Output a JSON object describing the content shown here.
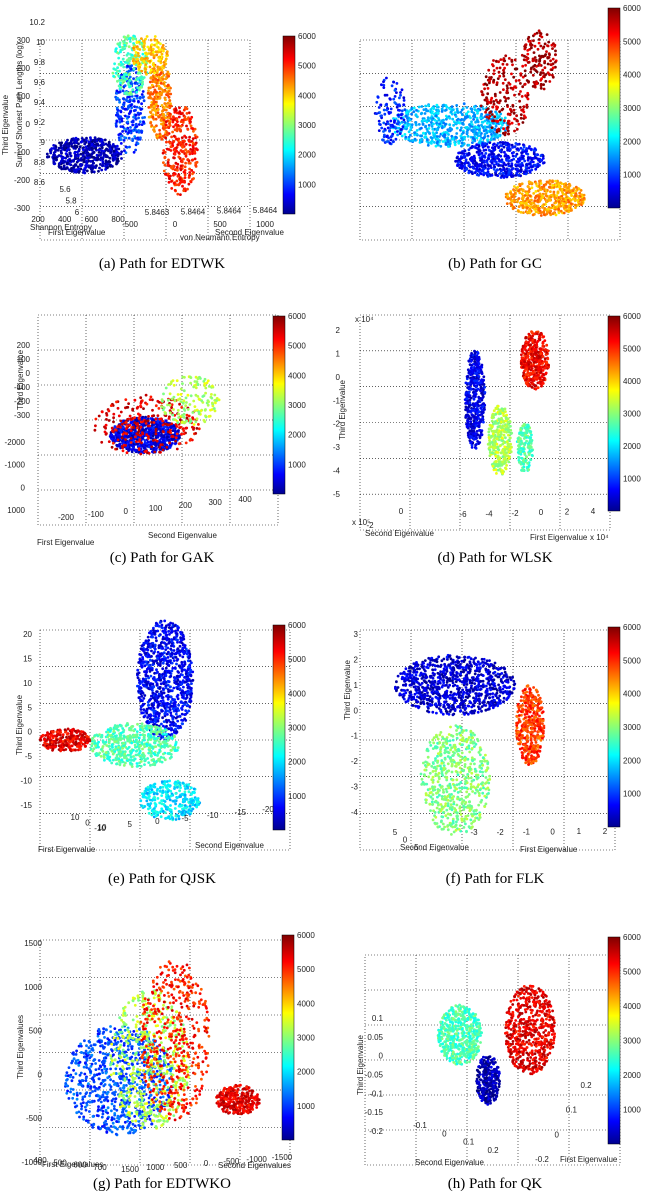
{
  "chart_data": [
    {
      "type": "scatter",
      "caption": "(a)  Path for EDTWK",
      "xlabel": "First Eigenvalue",
      "ylabel": "Second Eigenvalue",
      "zlabel": "Third Eigenvalue",
      "z_ticks": [
        "300",
        "200",
        "100",
        "0",
        "-100",
        "-200",
        "-300"
      ],
      "x_ticks": [
        "200",
        "400",
        "600",
        "800"
      ],
      "y_ticks": [
        "-500",
        "0",
        "500",
        "1000"
      ],
      "colorbar": {
        "min": 0,
        "max": 6000,
        "ticks": [
          "1000",
          "2000",
          "3000",
          "4000",
          "5000",
          "6000"
        ]
      }
    },
    {
      "type": "scatter",
      "caption": "(b)  Path for GC",
      "xlabel": "Shannon Entropy",
      "ylabel": "von Neumann Entropy",
      "zlabel": "Sum of Shortest Path Lengths (log)",
      "z_ticks": [
        "10.2",
        "10",
        "9.8",
        "9.6",
        "9.4",
        "9.2",
        "9",
        "8.8",
        "8.6"
      ],
      "x_ticks": [
        "5.6",
        "5.8",
        "6"
      ],
      "y_ticks": [
        "5.8463",
        "5.8464",
        "5.8464",
        "5.8464"
      ],
      "colorbar": {
        "min": 0,
        "max": 6000,
        "ticks": [
          "1000",
          "2000",
          "3000",
          "4000",
          "5000",
          "6000"
        ]
      }
    },
    {
      "type": "scatter",
      "caption": "(c)  Path for GAK",
      "xlabel": "First Eigenvalue",
      "ylabel": "Second Eigenvalue",
      "zlabel": "Third Eigenvalue",
      "z_ticks": [
        "200",
        "100",
        "0",
        "-100",
        "-200",
        "-300"
      ],
      "x_ticks": [
        "-2000",
        "-1000",
        "0",
        "1000"
      ],
      "y_ticks": [
        "-200",
        "-100",
        "0",
        "100",
        "200",
        "300",
        "400"
      ],
      "colorbar": {
        "min": 0,
        "max": 6000,
        "ticks": [
          "1000",
          "2000",
          "3000",
          "4000",
          "5000",
          "6000"
        ]
      }
    },
    {
      "type": "scatter",
      "caption": "(d)  Path for WLSK",
      "xlabel": "First Eigenvalue",
      "ylabel": "Second Eigenvalue",
      "zlabel": "Third Eigenvalue",
      "z_exp": "x 10⁴",
      "x_exp": "x 10⁴",
      "y_exp": "x 10⁵",
      "z_ticks": [
        "2",
        "1",
        "0",
        "-1",
        "-2",
        "-3",
        "-4",
        "-5"
      ],
      "x_ticks": [
        "-6",
        "-4",
        "-2",
        "0",
        "2",
        "4"
      ],
      "y_ticks": [
        "-2",
        "0"
      ],
      "colorbar": {
        "min": 0,
        "max": 6000,
        "ticks": [
          "1000",
          "2000",
          "3000",
          "4000",
          "5000",
          "6000"
        ]
      }
    },
    {
      "type": "scatter",
      "caption": "(e)  Path for QJSK",
      "xlabel": "First Eigenvalue",
      "ylabel": "Second Eigenvalue",
      "zlabel": "Third Eigenvalue",
      "z_ticks": [
        "20",
        "15",
        "10",
        "5",
        "0",
        "-5",
        "-10",
        "-15"
      ],
      "x_ticks": [
        "10",
        "0",
        "-10"
      ],
      "y_ticks": [
        "10",
        "5",
        "0",
        "-5",
        "-10",
        "-15",
        "-20"
      ],
      "colorbar": {
        "min": 0,
        "max": 6000,
        "ticks": [
          "1000",
          "2000",
          "3000",
          "4000",
          "5000",
          "6000"
        ]
      }
    },
    {
      "type": "scatter",
      "caption": "(f)  Path for FLK",
      "xlabel": "First Eigenvalue",
      "ylabel": "Second Eigenvalue",
      "zlabel": "Third Eigenvalue",
      "z_ticks": [
        "3",
        "2",
        "1",
        "0",
        "-1",
        "-2",
        "-3",
        "-4"
      ],
      "x_ticks": [
        "-3",
        "-2",
        "-1",
        "0",
        "1",
        "2"
      ],
      "y_ticks": [
        "5",
        "0",
        "-5"
      ],
      "colorbar": {
        "min": 0,
        "max": 6000,
        "ticks": [
          "1000",
          "2000",
          "3000",
          "4000",
          "5000",
          "6000"
        ]
      }
    },
    {
      "type": "scatter",
      "caption": "(g)  Path for EDTWKO",
      "xlabel": "First Eigenvalues",
      "ylabel": "Second Eigenvalues",
      "zlabel": "Third Eigenvalues",
      "z_ticks": [
        "1500",
        "1000",
        "500",
        "0",
        "-500",
        "-1000"
      ],
      "x_ticks": [
        "400",
        "500",
        "600",
        "700"
      ],
      "y_ticks": [
        "1500",
        "1000",
        "500",
        "0",
        "-500",
        "-1000",
        "-1500"
      ],
      "colorbar": {
        "min": 0,
        "max": 6000,
        "ticks": [
          "1000",
          "2000",
          "3000",
          "4000",
          "5000",
          "6000"
        ]
      }
    },
    {
      "type": "scatter",
      "caption": "(h)  Path for QK",
      "xlabel": "First Eigenvalue",
      "ylabel": "Second Eigenvalue",
      "zlabel": "Third Eigenvalue",
      "z_ticks": [
        "0.1",
        "0.05",
        "0",
        "-0.05",
        "-0.1",
        "-0.15",
        "-0.2"
      ],
      "x_ticks": [
        "-0.2",
        "0",
        "0.1",
        "0.2"
      ],
      "y_ticks": [
        "-0.1",
        "0",
        "0.1",
        "0.2"
      ],
      "colorbar": {
        "min": 0,
        "max": 6000,
        "ticks": [
          "1000",
          "2000",
          "3000",
          "4000",
          "5000",
          "6000"
        ]
      }
    }
  ]
}
